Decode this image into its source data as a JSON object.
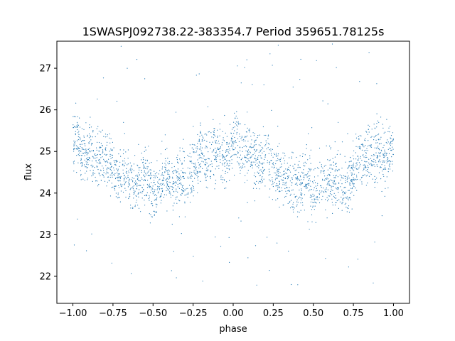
{
  "chart_data": {
    "type": "scatter",
    "title": "1SWASPJ092738.22-383354.7 Period 359651.78125s",
    "xlabel": "phase",
    "ylabel": "flux",
    "xlim": [
      -1.1,
      1.1
    ],
    "ylim": [
      21.35,
      27.65
    ],
    "grid": false,
    "legend": "none",
    "marker_color": "#1f77b4",
    "x_ticks": [
      {
        "value": -1.0,
        "label": "−1.00"
      },
      {
        "value": -0.75,
        "label": "−0.75"
      },
      {
        "value": -0.5,
        "label": "−0.50"
      },
      {
        "value": -0.25,
        "label": "−0.25"
      },
      {
        "value": 0.0,
        "label": "0.00"
      },
      {
        "value": 0.25,
        "label": "0.25"
      },
      {
        "value": 0.5,
        "label": "0.50"
      },
      {
        "value": 0.75,
        "label": "0.75"
      },
      {
        "value": 1.0,
        "label": "1.00"
      }
    ],
    "y_ticks": [
      {
        "value": 22,
        "label": "22"
      },
      {
        "value": 23,
        "label": "23"
      },
      {
        "value": 24,
        "label": "24"
      },
      {
        "value": 25,
        "label": "25"
      },
      {
        "value": 26,
        "label": "26"
      },
      {
        "value": 27,
        "label": "27"
      }
    ],
    "series": [
      {
        "phase": [
          -1.0,
          -0.975,
          -0.95,
          -0.925,
          -0.9,
          -0.875,
          -0.85,
          -0.825,
          -0.8,
          -0.775,
          -0.75,
          -0.725,
          -0.7,
          -0.675,
          -0.65,
          -0.625,
          -0.6,
          -0.575,
          -0.55,
          -0.525,
          -0.5,
          -0.475,
          -0.45,
          -0.425,
          -0.4,
          -0.375,
          -0.35,
          -0.325,
          -0.3,
          -0.275,
          -0.25,
          -0.225,
          -0.2,
          -0.175,
          -0.15,
          -0.125,
          -0.1,
          -0.075,
          -0.05,
          -0.025,
          0.0,
          0.025,
          0.05,
          0.075,
          0.1,
          0.125,
          0.15,
          0.175,
          0.2,
          0.225,
          0.25,
          0.275,
          0.3,
          0.325,
          0.35,
          0.375,
          0.4,
          0.425,
          0.45,
          0.475,
          0.5,
          0.525,
          0.55,
          0.575,
          0.6,
          0.625,
          0.65,
          0.675,
          0.7,
          0.725,
          0.75,
          0.775,
          0.8,
          0.825,
          0.85,
          0.875,
          0.9,
          0.925,
          0.95,
          0.975,
          1.0
        ],
        "flux_median": [
          25.3,
          25.4,
          25.0,
          24.9,
          25.1,
          24.9,
          24.8,
          24.8,
          24.9,
          24.8,
          24.6,
          24.4,
          24.3,
          24.5,
          24.3,
          24.2,
          24.3,
          24.2,
          24.5,
          24.3,
          24.0,
          24.1,
          24.3,
          24.4,
          24.3,
          24.2,
          24.3,
          24.3,
          24.2,
          24.3,
          24.6,
          24.8,
          24.9,
          24.8,
          24.9,
          24.9,
          25.0,
          24.9,
          24.8,
          24.9,
          25.3,
          25.4,
          25.0,
          24.9,
          25.1,
          24.9,
          24.8,
          24.8,
          24.9,
          24.8,
          24.6,
          24.4,
          24.3,
          24.5,
          24.3,
          24.2,
          24.3,
          24.2,
          24.5,
          24.3,
          24.0,
          24.1,
          24.3,
          24.4,
          24.3,
          24.2,
          24.3,
          24.3,
          24.2,
          24.3,
          24.6,
          24.8,
          24.9,
          24.8,
          24.9,
          24.9,
          25.0,
          24.9,
          24.8,
          24.9,
          25.3
        ],
        "flux_spread": 0.35,
        "outlier_flux_range": [
          21.7,
          27.6
        ]
      }
    ]
  }
}
